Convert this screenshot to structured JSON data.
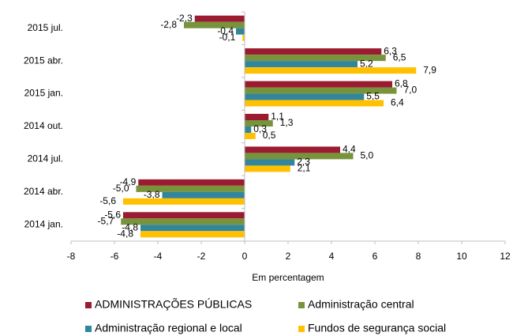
{
  "chart_data": {
    "type": "bar",
    "orientation": "horizontal",
    "categories": [
      "2015 jul.",
      "2015 abr.",
      "2015 jan.",
      "2014 out.",
      "2014 jul.",
      "2014 abr.",
      "2014 jan."
    ],
    "series": [
      {
        "name": "ADMINISTRAÇÕES PÚBLICAS",
        "color": "#9b1b30",
        "values": [
          -2.3,
          6.3,
          6.8,
          1.1,
          4.4,
          -4.9,
          -5.6
        ],
        "value_labels": [
          "-2,3",
          "6,3",
          "6,8",
          "1,1",
          "4,4",
          "-4,9",
          "-5,6"
        ]
      },
      {
        "name": "Administração central",
        "color": "#77933c",
        "values": [
          -2.8,
          6.5,
          7.0,
          1.3,
          5.0,
          -5.0,
          -5.7
        ],
        "value_labels": [
          "-2,8",
          "6,5",
          "7,0",
          "1,3",
          "5,0",
          "-5,0",
          "-5,7"
        ]
      },
      {
        "name": "Administração regional e local",
        "color": "#31859c",
        "values": [
          -0.4,
          5.2,
          5.5,
          0.3,
          2.3,
          -3.8,
          -4.8
        ],
        "value_labels": [
          "-0,4",
          "5,2",
          "5,5",
          "0,3",
          "2,3",
          "-3,8",
          "-4,8"
        ]
      },
      {
        "name": "Fundos de segurança social",
        "color": "#ffc000",
        "values": [
          -0.1,
          7.9,
          6.4,
          0.5,
          2.1,
          -5.6,
          -4.8
        ],
        "value_labels": [
          "-0,1",
          "7,9",
          "6,4",
          "0,5",
          "2,1",
          "-5,6",
          "-4,8"
        ]
      }
    ],
    "xlabel": "Em percentagem",
    "xlim": [
      -8,
      12
    ],
    "xticks": [
      -8,
      -6,
      -4,
      -2,
      0,
      2,
      4,
      6,
      8,
      10,
      12
    ],
    "legend": "bottom"
  }
}
